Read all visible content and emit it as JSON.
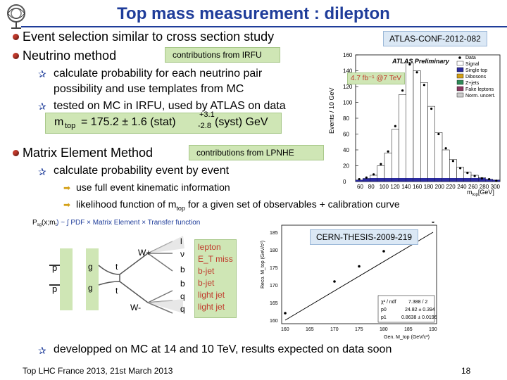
{
  "header": {
    "title": "Top mass measurement : dilepton"
  },
  "bullets": {
    "event_selection": "Event selection similar to cross section study",
    "neutrino_method": "Neutrino method",
    "contrib_irfu": "contributions from IRFU",
    "nm_item1": "calculate probability for each neutrino pair",
    "nm_item1b": "possibility and use templates from MC",
    "nm_item2": "tested on MC in IRFU, used by ATLAS on data",
    "result_main": "m",
    "result_sub": "top",
    "result_value": "= 175.2 ± 1.6 (stat)",
    "result_minus": "-2.8",
    "result_plus": "+3.1",
    "result_syst": "(syst) GeV",
    "matrix_method": "Matrix Element Method",
    "contrib_lpnhe": "contributions from LPNHE",
    "mem_item1": "calculate probability event by event",
    "mem_sub1": "use full event kinematic information",
    "mem_sub2a": "likelihood function of m",
    "mem_sub2_sub": "top",
    "mem_sub2b": "for a given set of observables + calibration curve",
    "final": "developped on MC at 14 and 10 TeV, results expected on data soon"
  },
  "refs": {
    "conf": "ATLAS-CONF-2012-082",
    "thesis": "CERN-THESIS-2009-219",
    "lumi": "4.7 fb⁻¹ @7 TeV"
  },
  "hist": {
    "label": "ATLAS Preliminary",
    "ylabel": "Events / 10 GeV",
    "xlabel": "m",
    "xlabel_sub": "top",
    "xlabel_unit": "[GeV]",
    "legend": [
      "Data",
      "Signal",
      "Single top",
      "Dibosons",
      "Z+jets",
      "Fake leptons",
      "Norm. uncert."
    ],
    "yticks": [
      "160",
      "140",
      "120",
      "100",
      "80",
      "60",
      "40",
      "20",
      "0"
    ],
    "xticks": [
      "60",
      "80",
      "100",
      "120",
      "140",
      "160",
      "180",
      "200",
      "220",
      "240",
      "260",
      "280",
      "300"
    ],
    "colors": {
      "signal": "#ffffff",
      "single_top": "#2b2b9f",
      "diboson": "#d4a017",
      "zjets": "#2e8b57",
      "fake": "#8b3a62"
    }
  },
  "feynman": {
    "pdf_line": "P",
    "pdf_line2": "(x;m",
    "pdf_line3": ") ~ ∫ PDF × Matrix Element × Transfer function",
    "p": "p",
    "pbar": "p",
    "g1": "g",
    "g2": "g",
    "t": "t",
    "tbar": "t",
    "Wplus": "W+",
    "Wminus": "W-",
    "lep": "l",
    "nu": "ν",
    "b": "b",
    "bbar": "b",
    "q": "q",
    "qbar": "q",
    "labels": [
      "lepton",
      "E_T miss",
      "b-jet",
      "b-jet",
      "light jet",
      "light jet"
    ]
  },
  "calib": {
    "ylabel": "Reco. M_top (GeV/c²)",
    "xlabel": "Gen. M_top (GeV/c²)",
    "yticks": [
      "185",
      "180",
      "175",
      "170",
      "165",
      "160"
    ],
    "xticks": [
      "160",
      "165",
      "170",
      "175",
      "180",
      "185",
      "190"
    ],
    "fit": {
      "chi2_label": "χ² / ndf",
      "chi2_val": "7.388 / 2",
      "p0_label": "p0",
      "p0_val": "24.82 ± 0.394",
      "p1_label": "p1",
      "p1_val": "0.8638 ± 0.0196"
    }
  },
  "footer": {
    "left": "Top LHC France 2013, 21st March 2013",
    "page": "18"
  }
}
